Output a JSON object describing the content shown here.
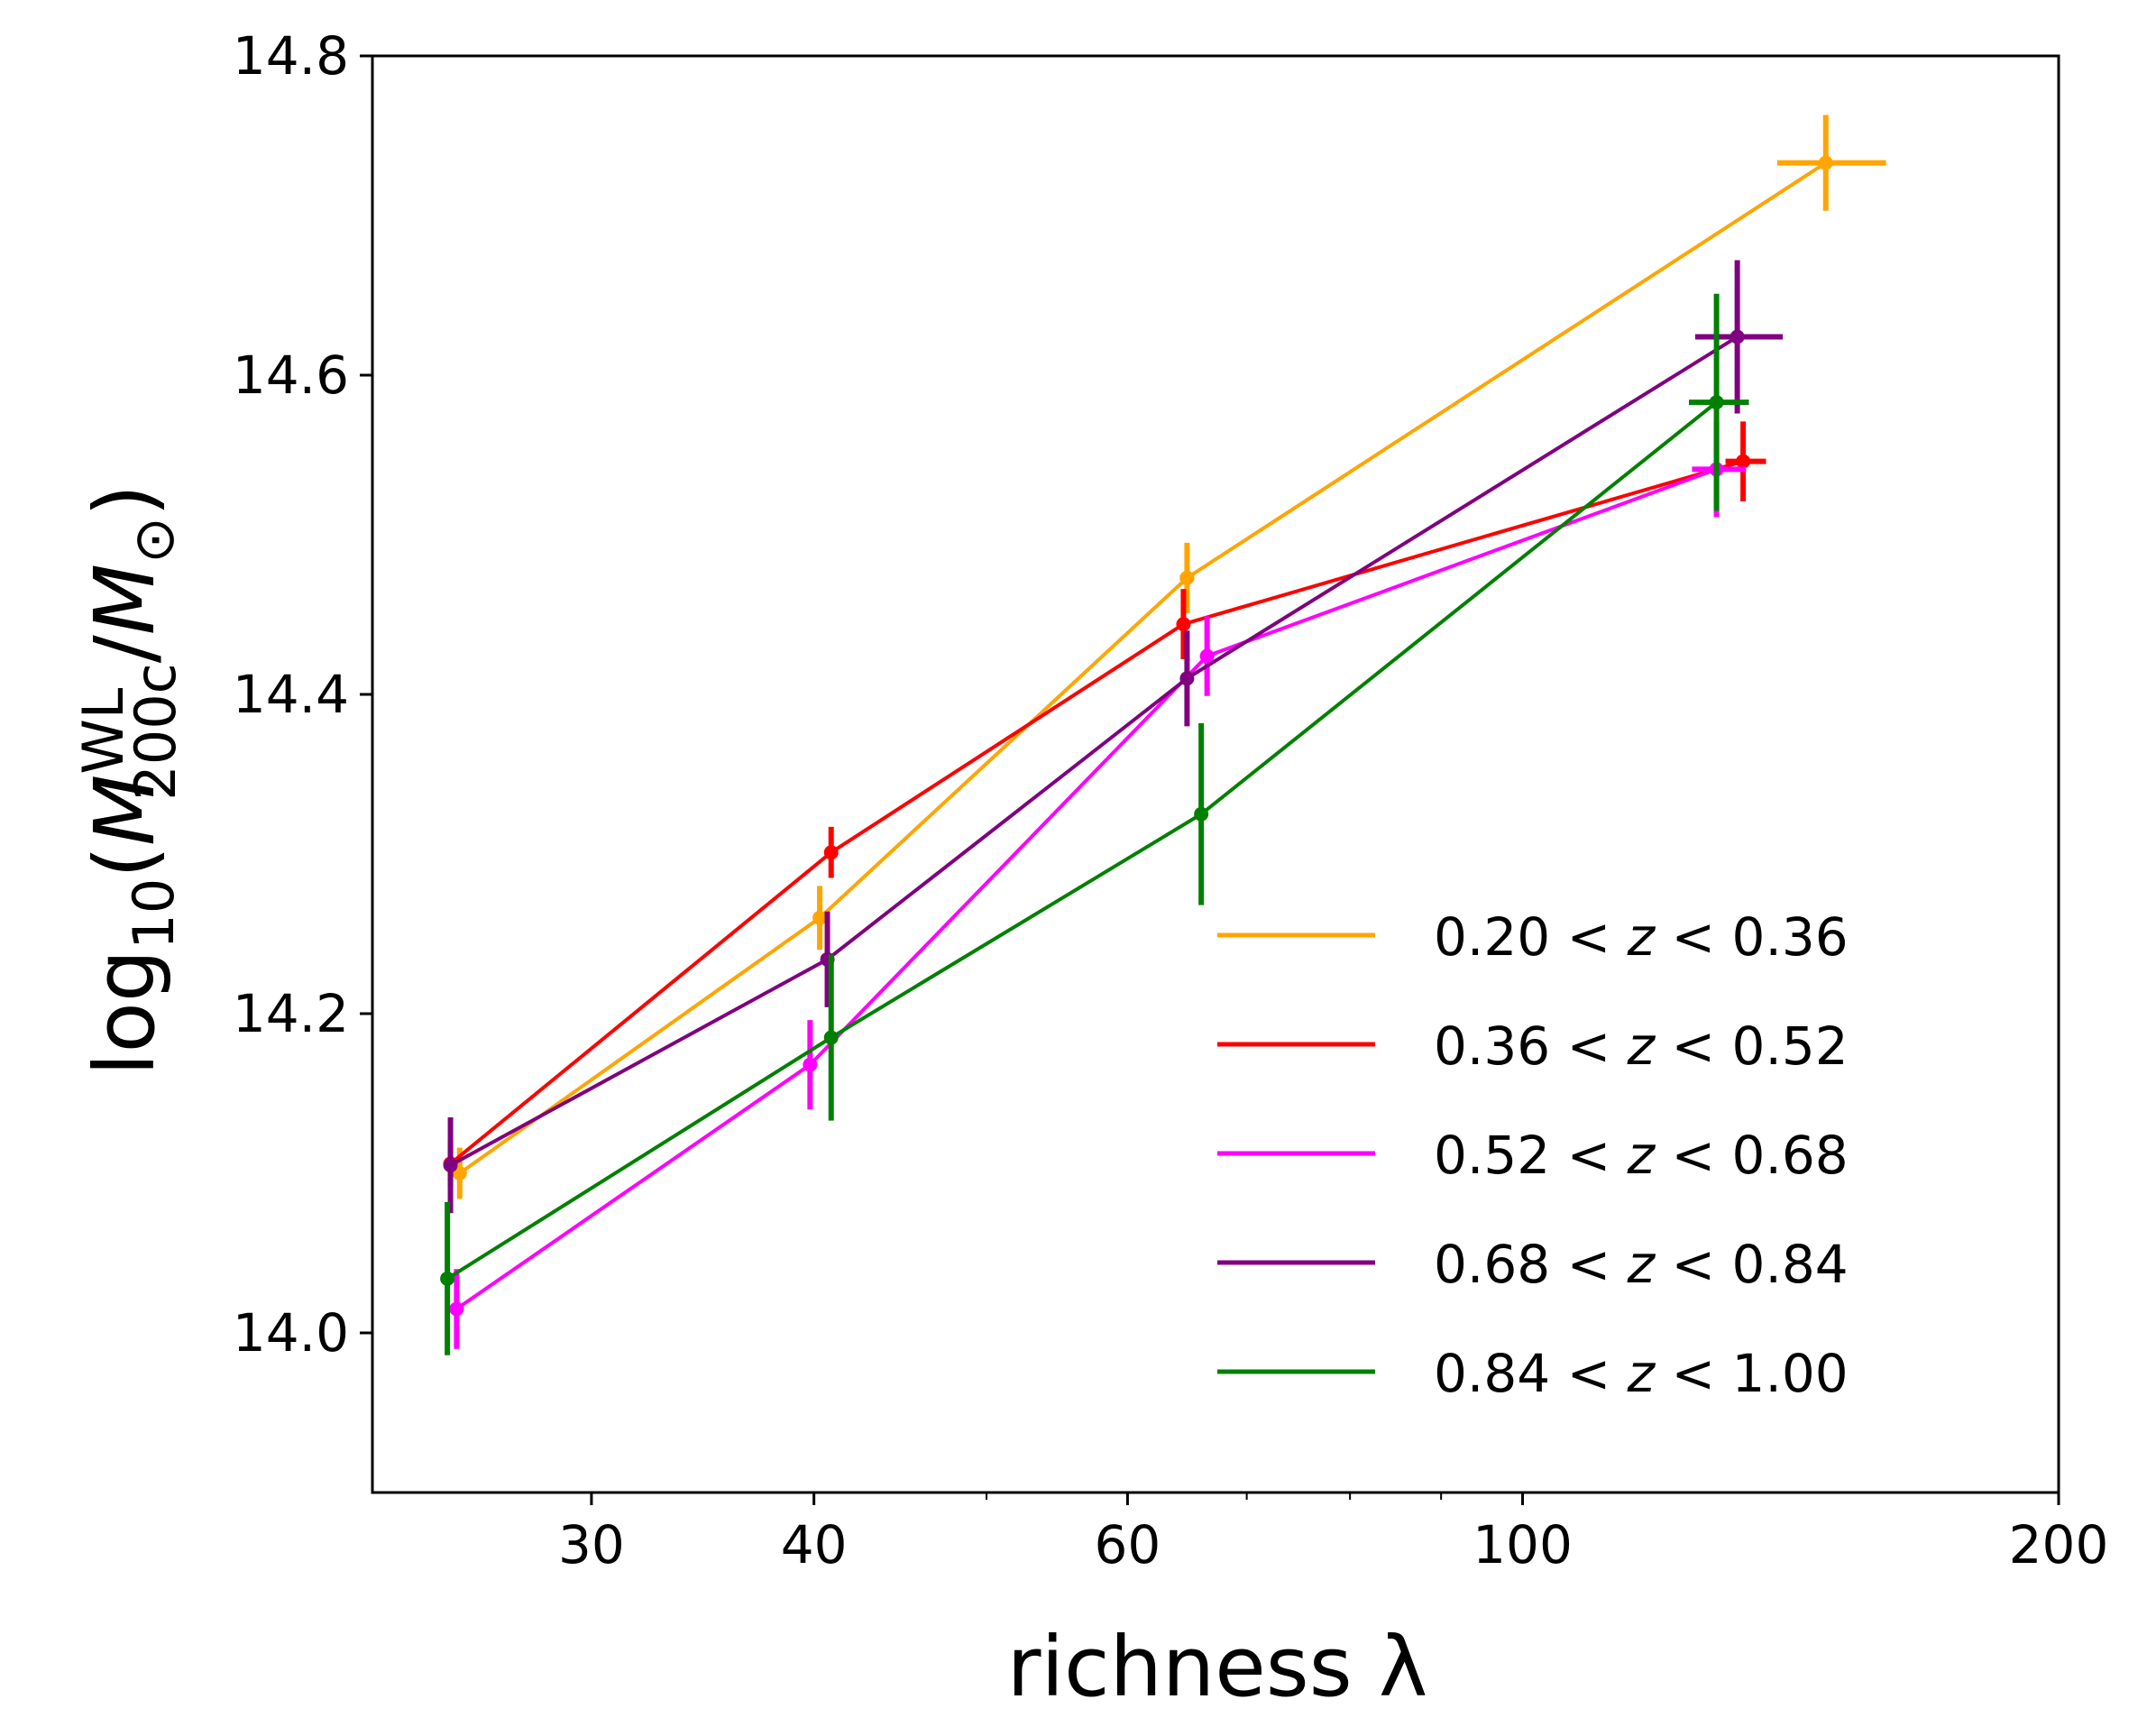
{
  "chart_data": {
    "type": "scatter",
    "xlabel": "richness λ",
    "ylabel": {
      "prefix": "log",
      "log_sub": "10",
      "open": "(",
      "M": "M",
      "sub": "200c",
      "sup": "WL",
      "slash": "/",
      "Msun": "M",
      "sun_sub": "⊙",
      "close": ")"
    },
    "x_scale": "log",
    "xlim": [
      22.6,
      200
    ],
    "ylim": [
      13.9,
      14.8
    ],
    "xticks": [
      {
        "value": 30,
        "label": "30"
      },
      {
        "value": 40,
        "label": "40"
      },
      {
        "value": 60,
        "label": "60"
      },
      {
        "value": 100,
        "label": "100"
      },
      {
        "value": 200,
        "label": "200"
      }
    ],
    "xminorticks": [
      50,
      70,
      80,
      90
    ],
    "yticks": [
      {
        "value": 14.0,
        "label": "14.0"
      },
      {
        "value": 14.2,
        "label": "14.2"
      },
      {
        "value": 14.4,
        "label": "14.4"
      },
      {
        "value": 14.6,
        "label": "14.6"
      },
      {
        "value": 14.8,
        "label": "14.8"
      }
    ],
    "grid": false,
    "legend_position": "lower-right",
    "series": [
      {
        "name": "0.20 < z < 0.36",
        "legend_parts": [
          "0.20 < ",
          "z",
          " < 0.36"
        ],
        "color": "#FFA500",
        "points": [
          {
            "x": 25.3,
            "y": 14.1,
            "xerr": [
              0.2,
              0.2
            ],
            "yerr": 0.016
          },
          {
            "x": 40.3,
            "y": 14.26,
            "xerr": [
              0.3,
              0.3
            ],
            "yerr": 0.02
          },
          {
            "x": 64.8,
            "y": 14.473,
            "xerr": [
              0.6,
              0.6
            ],
            "yerr": 0.022
          },
          {
            "x": 148.0,
            "y": 14.733,
            "xerr": [
              9.0,
              12.0
            ],
            "yerr": 0.03
          }
        ]
      },
      {
        "name": "0.36 < z < 0.52",
        "legend_parts": [
          "0.36 < ",
          "z",
          " < 0.52"
        ],
        "color": "#FF0000",
        "points": [
          {
            "x": 25.0,
            "y": 14.106,
            "xerr": [
              0.2,
              0.2
            ],
            "yerr": 0.014
          },
          {
            "x": 40.9,
            "y": 14.301,
            "xerr": [
              0.2,
              0.2
            ],
            "yerr": 0.016
          },
          {
            "x": 64.5,
            "y": 14.444,
            "xerr": [
              0.5,
              0.5
            ],
            "yerr": 0.022
          },
          {
            "x": 133.0,
            "y": 14.546,
            "xerr": [
              3.0,
              4.0
            ],
            "yerr": 0.025
          }
        ]
      },
      {
        "name": "0.52 < z < 0.68",
        "legend_parts": [
          "0.52 < ",
          "z",
          " < 0.68"
        ],
        "color": "#FF00FF",
        "points": [
          {
            "x": 25.2,
            "y": 14.015,
            "xerr": [
              0.1,
              0.1
            ],
            "yerr": 0.025
          },
          {
            "x": 39.8,
            "y": 14.168,
            "xerr": [
              0.2,
              0.2
            ],
            "yerr": 0.028
          },
          {
            "x": 66.5,
            "y": 14.424,
            "xerr": [
              0.5,
              0.5
            ],
            "yerr": 0.025
          },
          {
            "x": 128.5,
            "y": 14.541,
            "xerr": [
              4.0,
              5.0
            ],
            "yerr": 0.03
          }
        ]
      },
      {
        "name": "0.68 < z < 0.84",
        "legend_parts": [
          "0.68 < ",
          "z",
          " < 0.84"
        ],
        "color": "#800080",
        "points": [
          {
            "x": 25.0,
            "y": 14.105,
            "xerr": [
              0.2,
              0.2
            ],
            "yerr": 0.03
          },
          {
            "x": 40.7,
            "y": 14.234,
            "xerr": [
              0.2,
              0.2
            ],
            "yerr": 0.03
          },
          {
            "x": 64.8,
            "y": 14.41,
            "xerr": [
              0.5,
              0.5
            ],
            "yerr": 0.03
          },
          {
            "x": 132.0,
            "y": 14.624,
            "xerr": [
              7.0,
              8.0
            ],
            "yerr": 0.048
          }
        ]
      },
      {
        "name": "0.84 < z < 1.00",
        "legend_parts": [
          "0.84 < ",
          "z",
          " < 1.00"
        ],
        "color": "#008000",
        "points": [
          {
            "x": 24.9,
            "y": 14.034,
            "xerr": [
              0.1,
              0.1
            ],
            "yerr": 0.048
          },
          {
            "x": 40.9,
            "y": 14.185,
            "xerr": [
              0.2,
              0.2
            ],
            "yerr": 0.052
          },
          {
            "x": 66.0,
            "y": 14.325,
            "xerr": [
              0.5,
              0.5
            ],
            "yerr": 0.057
          },
          {
            "x": 128.5,
            "y": 14.583,
            "xerr": [
              4.5,
              5.5
            ],
            "yerr": 0.068
          }
        ]
      }
    ]
  }
}
